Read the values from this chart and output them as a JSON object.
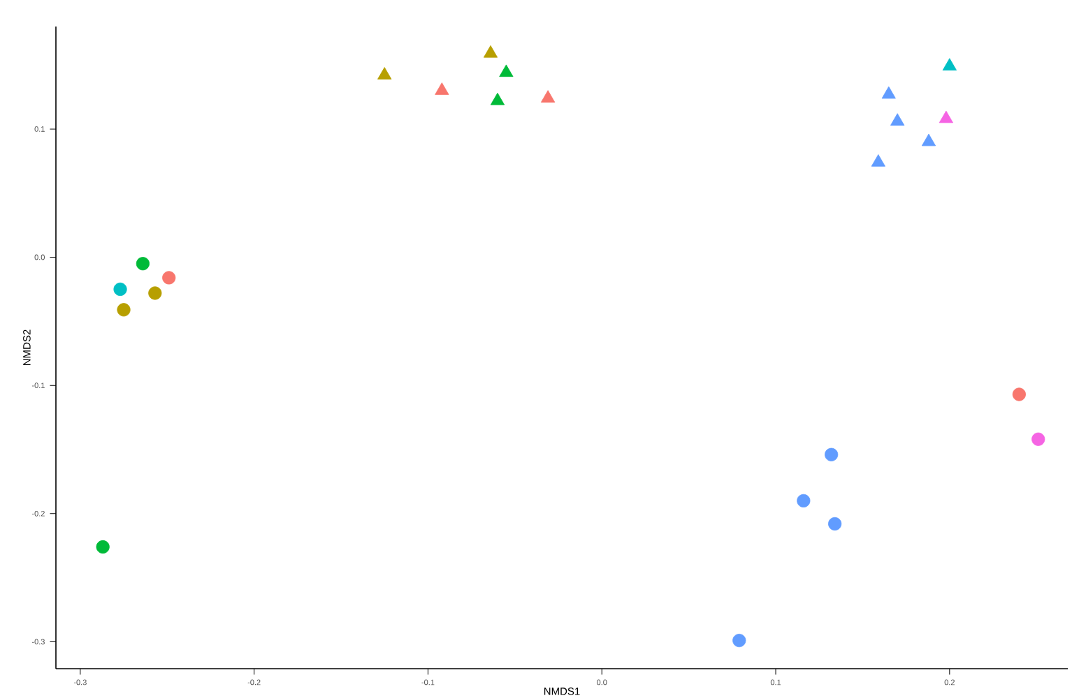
{
  "chart_data": {
    "type": "scatter",
    "xlabel": "NMDS1",
    "ylabel": "NMDS2",
    "xlim": [
      -0.314,
      0.268
    ],
    "ylim": [
      -0.321,
      0.18
    ],
    "xticks": [
      -0.3,
      -0.2,
      -0.1,
      {
        "value": 0,
        "label": "0.0"
      },
      0.1,
      0.2
    ],
    "yticks": [
      -0.3,
      -0.2,
      -0.1,
      {
        "value": 0,
        "label": "0.0"
      },
      0.1
    ],
    "grid": false,
    "series": [
      {
        "color": "#b79f00",
        "marker": "triangle",
        "x": [
          -0.125,
          -0.064
        ],
        "values": [
          0.142,
          0.159
        ]
      },
      {
        "color": "#f8766d",
        "marker": "triangle",
        "x": [
          -0.092,
          -0.031
        ],
        "values": [
          0.13,
          0.124
        ]
      },
      {
        "color": "#00ba38",
        "marker": "triangle",
        "x": [
          -0.055,
          -0.06
        ],
        "values": [
          0.144,
          0.122
        ]
      },
      {
        "color": "#00bfc4",
        "marker": "triangle",
        "x": [
          0.2
        ],
        "values": [
          0.149
        ]
      },
      {
        "color": "#619cff",
        "marker": "triangle",
        "x": [
          0.165,
          0.17,
          0.188,
          0.159
        ],
        "values": [
          0.127,
          0.106,
          0.09,
          0.074
        ]
      },
      {
        "color": "#f564e3",
        "marker": "triangle",
        "x": [
          0.198
        ],
        "values": [
          0.108
        ]
      },
      {
        "color": "#00ba38",
        "marker": "circle",
        "x": [
          -0.264,
          -0.287
        ],
        "values": [
          -0.005,
          -0.226
        ]
      },
      {
        "color": "#00bfc4",
        "marker": "circle",
        "x": [
          -0.277
        ],
        "values": [
          -0.025
        ]
      },
      {
        "color": "#b79f00",
        "marker": "circle",
        "x": [
          -0.275,
          -0.257
        ],
        "values": [
          -0.041,
          -0.028
        ]
      },
      {
        "color": "#f8766d",
        "marker": "circle",
        "x": [
          -0.249,
          0.24
        ],
        "values": [
          -0.016,
          -0.107
        ]
      },
      {
        "color": "#f564e3",
        "marker": "circle",
        "x": [
          0.251
        ],
        "values": [
          -0.142
        ]
      },
      {
        "color": "#619cff",
        "marker": "circle",
        "x": [
          0.132,
          0.116,
          0.134,
          0.079
        ],
        "values": [
          -0.154,
          -0.19,
          -0.208,
          -0.299
        ]
      }
    ]
  }
}
